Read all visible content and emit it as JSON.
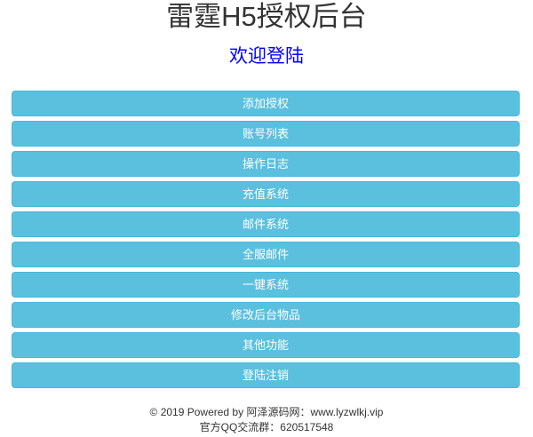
{
  "header": {
    "title": "雷霆H5授权后台",
    "welcome": "欢迎登陆"
  },
  "menu": [
    "添加授权",
    "账号列表",
    "操作日志",
    "充值系统",
    "邮件系统",
    "全服邮件",
    "一键系统",
    "修改后台物品",
    "其他功能",
    "登陆注销"
  ],
  "footer": {
    "line1": "© 2019 Powered by 阿泽源码网：www.lyzwlkj.vip",
    "line2": "官方QQ交流群：620517548"
  },
  "colors": {
    "button": "#5bc0de",
    "welcome": "#0000ff"
  }
}
